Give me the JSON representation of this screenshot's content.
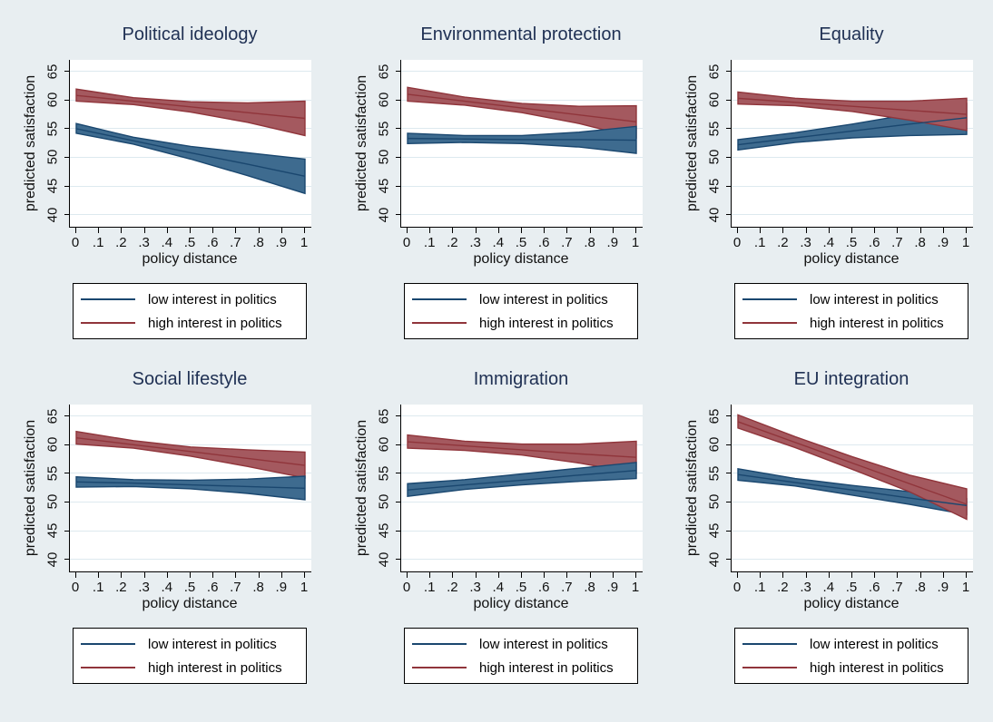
{
  "page": {
    "background": "#e8eef1",
    "plot_background": "#ffffff",
    "gridline_color": "#dde9ef",
    "title_color": "#203154"
  },
  "legend": {
    "items": [
      {
        "key": "low",
        "label": "low interest in politics",
        "color": "#1a476f"
      },
      {
        "key": "high",
        "label": "high interest in politics",
        "color": "#90353b"
      }
    ]
  },
  "axis": {
    "y_label": "predicted satisfaction",
    "x_label": "policy distance",
    "y_ticks": [
      40,
      45,
      50,
      55,
      60,
      65
    ],
    "x_ticks": [
      "0",
      ".1",
      ".2",
      ".3",
      ".4",
      ".5",
      ".6",
      ".7",
      ".8",
      ".9",
      "1"
    ],
    "x_tick_values": [
      0,
      0.1,
      0.2,
      0.3,
      0.4,
      0.5,
      0.6,
      0.7,
      0.8,
      0.9,
      1
    ],
    "y_range": [
      37.9,
      67.0
    ],
    "x_range": [
      0,
      1
    ],
    "grid": true
  },
  "chart_data": [
    {
      "type": "area",
      "title": "Political ideology",
      "x": [
        0,
        0.25,
        0.5,
        0.75,
        1
      ],
      "series": [
        {
          "name": "low interest in politics",
          "key": "low",
          "fill": "#3e6b8f",
          "line": "#1a476f",
          "mid": [
            55.0,
            52.9,
            50.8,
            48.8,
            46.7
          ],
          "lo": [
            54.2,
            52.3,
            49.7,
            46.8,
            43.7
          ],
          "hi": [
            55.9,
            53.5,
            51.9,
            50.8,
            49.7
          ]
        },
        {
          "name": "high interest in politics",
          "key": "high",
          "fill": "#a4595f",
          "line": "#90353b",
          "mid": [
            60.8,
            59.8,
            58.8,
            57.8,
            56.8
          ],
          "lo": [
            59.8,
            59.2,
            57.9,
            56.1,
            53.8
          ],
          "hi": [
            61.9,
            60.4,
            59.7,
            59.5,
            59.8
          ]
        }
      ]
    },
    {
      "type": "area",
      "title": "Environmental protection",
      "x": [
        0,
        0.25,
        0.5,
        0.75,
        1
      ],
      "series": [
        {
          "name": "high interest in politics",
          "key": "high",
          "fill": "#a4595f",
          "line": "#90353b",
          "mid": [
            61.0,
            59.8,
            58.6,
            57.4,
            56.2
          ],
          "lo": [
            59.8,
            59.1,
            57.8,
            55.9,
            53.4
          ],
          "hi": [
            62.2,
            60.5,
            59.4,
            58.9,
            59.0
          ]
        },
        {
          "name": "low interest in politics",
          "key": "low",
          "fill": "#3e6b8f",
          "line": "#1a476f",
          "mid": [
            53.3,
            53.2,
            53.1,
            53.1,
            53.0
          ],
          "lo": [
            52.4,
            52.6,
            52.4,
            51.8,
            50.7
          ],
          "hi": [
            54.2,
            53.8,
            53.8,
            54.4,
            55.4
          ]
        }
      ]
    },
    {
      "type": "area",
      "title": "Equality",
      "x": [
        0,
        0.25,
        0.5,
        0.75,
        1
      ],
      "series": [
        {
          "name": "low interest in politics",
          "key": "low",
          "fill": "#3e6b8f",
          "line": "#1a476f",
          "mid": [
            52.2,
            53.4,
            54.6,
            55.8,
            56.9
          ],
          "lo": [
            51.3,
            52.6,
            53.4,
            53.8,
            54.0
          ],
          "hi": [
            53.1,
            54.3,
            55.8,
            57.5,
            59.4
          ]
        },
        {
          "name": "high interest in politics",
          "key": "high",
          "fill": "#a4595f",
          "line": "#90353b",
          "mid": [
            60.3,
            59.6,
            58.9,
            58.2,
            57.5
          ],
          "lo": [
            59.3,
            59.0,
            58.0,
            56.5,
            54.7
          ],
          "hi": [
            61.4,
            60.3,
            59.8,
            59.8,
            60.3
          ]
        }
      ]
    },
    {
      "type": "area",
      "title": "Social lifestyle",
      "x": [
        0,
        0.25,
        0.5,
        0.75,
        1
      ],
      "series": [
        {
          "name": "high interest in politics",
          "key": "high",
          "fill": "#a4595f",
          "line": "#90353b",
          "mid": [
            61.2,
            60.0,
            58.8,
            57.6,
            56.4
          ],
          "lo": [
            60.1,
            59.4,
            58.0,
            56.2,
            54.2
          ],
          "hi": [
            62.3,
            60.7,
            59.6,
            59.1,
            58.7
          ]
        },
        {
          "name": "low interest in politics",
          "key": "low",
          "fill": "#3e6b8f",
          "line": "#1a476f",
          "mid": [
            53.5,
            53.3,
            53.0,
            52.7,
            52.4
          ],
          "lo": [
            52.6,
            52.7,
            52.3,
            51.5,
            50.4
          ],
          "hi": [
            54.4,
            53.9,
            53.8,
            54.0,
            54.5
          ]
        }
      ]
    },
    {
      "type": "area",
      "title": "Immigration",
      "x": [
        0,
        0.25,
        0.5,
        0.75,
        1
      ],
      "series": [
        {
          "name": "high interest in politics",
          "key": "high",
          "fill": "#a4595f",
          "line": "#90353b",
          "mid": [
            60.5,
            59.8,
            59.1,
            58.4,
            57.8
          ],
          "lo": [
            59.4,
            59.0,
            58.2,
            56.8,
            55.0
          ],
          "hi": [
            61.7,
            60.6,
            60.1,
            60.1,
            60.6
          ]
        },
        {
          "name": "low interest in politics",
          "key": "low",
          "fill": "#3e6b8f",
          "line": "#1a476f",
          "mid": [
            52.1,
            53.0,
            53.8,
            54.7,
            55.5
          ],
          "lo": [
            51.0,
            52.2,
            53.0,
            53.6,
            54.1
          ],
          "hi": [
            53.2,
            53.9,
            54.9,
            55.9,
            56.9
          ]
        }
      ]
    },
    {
      "type": "area",
      "title": "EU integration",
      "x": [
        0,
        0.25,
        0.5,
        0.75,
        1
      ],
      "series": [
        {
          "name": "low interest in politics",
          "key": "low",
          "fill": "#3e6b8f",
          "line": "#1a476f",
          "mid": [
            54.8,
            53.4,
            52.1,
            50.7,
            49.4
          ],
          "lo": [
            53.8,
            52.8,
            51.2,
            49.6,
            47.8
          ],
          "hi": [
            55.8,
            54.1,
            52.9,
            51.8,
            50.6
          ]
        },
        {
          "name": "high interest in politics",
          "key": "high",
          "fill": "#a4595f",
          "line": "#90353b",
          "mid": [
            64.0,
            60.4,
            56.8,
            53.2,
            49.6
          ],
          "lo": [
            62.9,
            59.5,
            55.7,
            51.8,
            47.0
          ],
          "hi": [
            65.2,
            61.4,
            57.9,
            54.7,
            52.3
          ]
        }
      ]
    }
  ]
}
